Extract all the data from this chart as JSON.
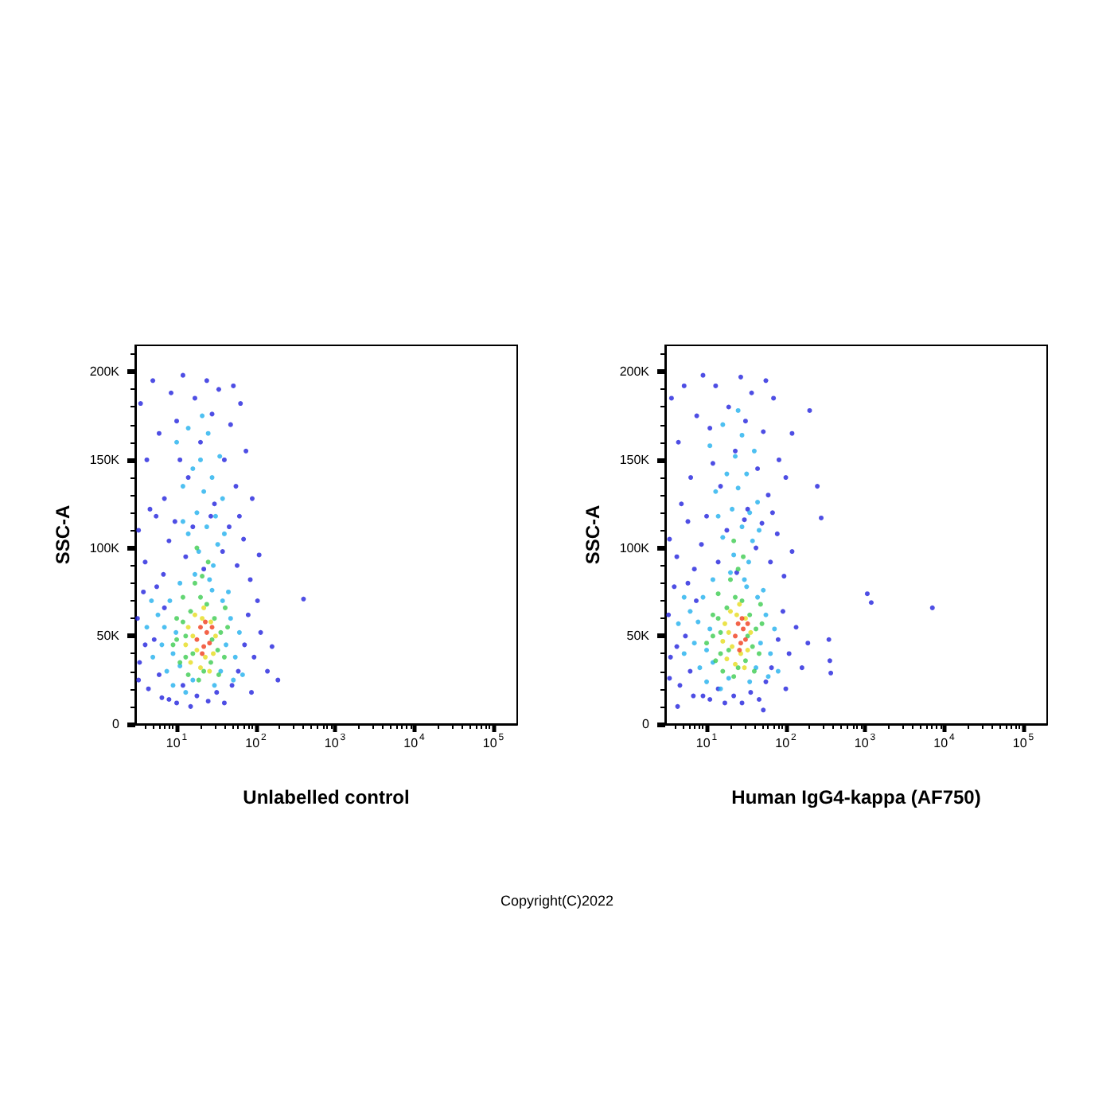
{
  "chart_data": [
    {
      "type": "scatter",
      "xlabel": "Unlabelled control",
      "ylabel": "SSC-A",
      "log": "x",
      "marker": "circle",
      "xlim": [
        3,
        200000
      ],
      "ylim": [
        0,
        215000
      ],
      "xticks": [
        {
          "value": 4,
          "label": null
        },
        {
          "value": 5,
          "label": null
        },
        {
          "value": 6,
          "label": null
        },
        {
          "value": 7,
          "label": null
        },
        {
          "value": 8,
          "label": null
        },
        {
          "value": 9,
          "label": null
        },
        {
          "value": 10,
          "label": "10$^{1}$"
        },
        {
          "value": 20,
          "label": null
        },
        {
          "value": 30,
          "label": null
        },
        {
          "value": 40,
          "label": null
        },
        {
          "value": 50,
          "label": null
        },
        {
          "value": 60,
          "label": null
        },
        {
          "value": 70,
          "label": null
        },
        {
          "value": 80,
          "label": null
        },
        {
          "value": 90,
          "label": null
        },
        {
          "value": 100,
          "label": "10$^{2}$"
        },
        {
          "value": 200,
          "label": null
        },
        {
          "value": 300,
          "label": null
        },
        {
          "value": 400,
          "label": null
        },
        {
          "value": 500,
          "label": null
        },
        {
          "value": 600,
          "label": null
        },
        {
          "value": 700,
          "label": null
        },
        {
          "value": 800,
          "label": null
        },
        {
          "value": 900,
          "label": null
        },
        {
          "value": 1000,
          "label": "10$^{3}$"
        },
        {
          "value": 2000,
          "label": null
        },
        {
          "value": 3000,
          "label": null
        },
        {
          "value": 4000,
          "label": null
        },
        {
          "value": 5000,
          "label": null
        },
        {
          "value": 6000,
          "label": null
        },
        {
          "value": 7000,
          "label": null
        },
        {
          "value": 8000,
          "label": null
        },
        {
          "value": 9000,
          "label": null
        },
        {
          "value": 10000,
          "label": "10$^{4}$"
        },
        {
          "value": 20000,
          "label": null
        },
        {
          "value": 30000,
          "label": null
        },
        {
          "value": 40000,
          "label": null
        },
        {
          "value": 50000,
          "label": null
        },
        {
          "value": 60000,
          "label": null
        },
        {
          "value": 70000,
          "label": null
        },
        {
          "value": 80000,
          "label": null
        },
        {
          "value": 90000,
          "label": null
        },
        {
          "value": 100000,
          "label": "10$^{5}$"
        }
      ],
      "yticks": [
        0,
        {
          "value": 10000,
          "label": null
        },
        {
          "value": 20000,
          "label": null
        },
        {
          "value": 30000,
          "label": null
        },
        {
          "value": 40000,
          "label": null
        },
        {
          "value": 50000,
          "label": "50K"
        },
        {
          "value": 60000,
          "label": null
        },
        {
          "value": 70000,
          "label": null
        },
        {
          "value": 80000,
          "label": null
        },
        {
          "value": 90000,
          "label": null
        },
        {
          "value": 100000,
          "label": "100K"
        },
        {
          "value": 110000,
          "label": null
        },
        {
          "value": 120000,
          "label": null
        },
        {
          "value": 130000,
          "label": null
        },
        {
          "value": 140000,
          "label": null
        },
        {
          "value": 150000,
          "label": "150K"
        },
        {
          "value": 160000,
          "label": null
        },
        {
          "value": 170000,
          "label": null
        },
        {
          "value": 180000,
          "label": null
        },
        {
          "value": 190000,
          "label": null
        },
        {
          "value": 200000,
          "label": "200K"
        },
        {
          "value": 210000,
          "label": null
        }
      ],
      "series": [
        {
          "color": "#2222dd",
          "x": [
            3.5,
            4.2,
            5,
            6,
            7,
            8.5,
            10,
            12,
            14,
            17,
            20,
            24,
            28,
            34,
            40,
            48,
            56,
            64,
            75,
            90,
            4.6,
            11,
            30,
            52,
            3.3,
            4,
            5.5,
            6.8,
            8,
            9.5,
            13,
            16,
            22,
            27,
            38,
            46,
            58,
            70,
            85,
            110,
            62,
            3.2,
            3.4,
            3.8,
            4.4,
            5.2,
            6,
            7,
            8,
            10,
            12,
            15,
            18,
            25,
            32,
            40,
            50,
            60,
            72,
            80,
            95,
            115,
            140,
            160,
            190,
            105,
            88,
            4,
            3.3,
            5.6,
            6.5,
            400
          ],
          "values": [
            182000,
            150000,
            195000,
            165000,
            128000,
            188000,
            172000,
            198000,
            140000,
            185000,
            160000,
            195000,
            176000,
            190000,
            150000,
            170000,
            135000,
            182000,
            155000,
            128000,
            122000,
            150000,
            125000,
            192000,
            110000,
            92000,
            118000,
            85000,
            104000,
            115000,
            95000,
            112000,
            88000,
            118000,
            98000,
            112000,
            90000,
            105000,
            82000,
            96000,
            118000,
            60000,
            35000,
            75000,
            20000,
            48000,
            28000,
            66000,
            14000,
            12000,
            22000,
            10000,
            16000,
            13000,
            18000,
            12000,
            22000,
            30000,
            45000,
            62000,
            38000,
            52000,
            30000,
            44000,
            25000,
            70000,
            18000,
            45000,
            25000,
            78000,
            15000,
            71000
          ]
        },
        {
          "color": "#22b0ee",
          "x": [
            10,
            12,
            14,
            16,
            18,
            20,
            22,
            25,
            28,
            31,
            35,
            38,
            14,
            19,
            24,
            29,
            33,
            17,
            26,
            21,
            12,
            40,
            4.2,
            5,
            5.8,
            6.5,
            7.5,
            8.2,
            9,
            9.8,
            11,
            13,
            16,
            30,
            36,
            42,
            48,
            55,
            62,
            45,
            38,
            7,
            11,
            68,
            9,
            28,
            4.8,
            52
          ],
          "values": [
            160000,
            135000,
            168000,
            145000,
            120000,
            150000,
            132000,
            165000,
            140000,
            118000,
            152000,
            128000,
            108000,
            98000,
            112000,
            90000,
            102000,
            85000,
            82000,
            175000,
            115000,
            108000,
            55000,
            38000,
            62000,
            45000,
            30000,
            70000,
            22000,
            52000,
            80000,
            18000,
            25000,
            22000,
            30000,
            45000,
            60000,
            38000,
            52000,
            75000,
            70000,
            55000,
            33000,
            28000,
            40000,
            76000,
            70000,
            25000
          ]
        },
        {
          "color": "#3ccc50",
          "x": [
            9,
            10,
            11,
            12,
            13,
            14,
            15,
            16,
            17,
            19,
            20,
            22,
            24,
            27,
            30,
            33,
            36,
            40,
            44,
            13,
            12,
            34,
            21,
            25,
            18,
            10,
            28,
            41
          ],
          "values": [
            45000,
            60000,
            35000,
            72000,
            50000,
            28000,
            64000,
            40000,
            80000,
            25000,
            72000,
            30000,
            68000,
            35000,
            60000,
            42000,
            52000,
            38000,
            55000,
            38000,
            58000,
            28000,
            84000,
            92000,
            100000,
            48000,
            48000,
            66000
          ]
        },
        {
          "color": "#e6dc1e",
          "x": [
            13,
            14,
            15,
            17,
            18,
            20,
            21,
            23,
            27,
            29,
            31,
            16,
            26,
            22
          ],
          "values": [
            45000,
            55000,
            35000,
            62000,
            42000,
            32000,
            60000,
            38000,
            58000,
            40000,
            50000,
            50000,
            30000,
            66000
          ]
        },
        {
          "color": "#f03c1c",
          "x": [
            18,
            20,
            22,
            24,
            26,
            28,
            23,
            21
          ],
          "values": [
            48000,
            55000,
            44000,
            52000,
            46000,
            55000,
            58000,
            40000
          ]
        }
      ]
    },
    {
      "type": "scatter",
      "xlabel": "Human IgG4-kappa (AF750)",
      "ylabel": "SSC-A",
      "log": "x",
      "marker": "circle",
      "xlim": [
        3,
        200000
      ],
      "ylim": [
        0,
        215000
      ],
      "xticks": [
        {
          "value": 4,
          "label": null
        },
        {
          "value": 5,
          "label": null
        },
        {
          "value": 6,
          "label": null
        },
        {
          "value": 7,
          "label": null
        },
        {
          "value": 8,
          "label": null
        },
        {
          "value": 9,
          "label": null
        },
        {
          "value": 10,
          "label": "10$^{1}$"
        },
        {
          "value": 20,
          "label": null
        },
        {
          "value": 30,
          "label": null
        },
        {
          "value": 40,
          "label": null
        },
        {
          "value": 50,
          "label": null
        },
        {
          "value": 60,
          "label": null
        },
        {
          "value": 70,
          "label": null
        },
        {
          "value": 80,
          "label": null
        },
        {
          "value": 90,
          "label": null
        },
        {
          "value": 100,
          "label": "10$^{2}$"
        },
        {
          "value": 200,
          "label": null
        },
        {
          "value": 300,
          "label": null
        },
        {
          "value": 400,
          "label": null
        },
        {
          "value": 500,
          "label": null
        },
        {
          "value": 600,
          "label": null
        },
        {
          "value": 700,
          "label": null
        },
        {
          "value": 800,
          "label": null
        },
        {
          "value": 900,
          "label": null
        },
        {
          "value": 1000,
          "label": "10$^{3}$"
        },
        {
          "value": 2000,
          "label": null
        },
        {
          "value": 3000,
          "label": null
        },
        {
          "value": 4000,
          "label": null
        },
        {
          "value": 5000,
          "label": null
        },
        {
          "value": 6000,
          "label": null
        },
        {
          "value": 7000,
          "label": null
        },
        {
          "value": 8000,
          "label": null
        },
        {
          "value": 9000,
          "label": null
        },
        {
          "value": 10000,
          "label": "10$^{4}$"
        },
        {
          "value": 20000,
          "label": null
        },
        {
          "value": 30000,
          "label": null
        },
        {
          "value": 40000,
          "label": null
        },
        {
          "value": 50000,
          "label": null
        },
        {
          "value": 60000,
          "label": null
        },
        {
          "value": 70000,
          "label": null
        },
        {
          "value": 80000,
          "label": null
        },
        {
          "value": 90000,
          "label": null
        },
        {
          "value": 100000,
          "label": "10$^{5}$"
        }
      ],
      "yticks": [
        0,
        {
          "value": 10000,
          "label": null
        },
        {
          "value": 20000,
          "label": null
        },
        {
          "value": 30000,
          "label": null
        },
        {
          "value": 40000,
          "label": null
        },
        {
          "value": 50000,
          "label": "50K"
        },
        {
          "value": 60000,
          "label": null
        },
        {
          "value": 70000,
          "label": null
        },
        {
          "value": 80000,
          "label": null
        },
        {
          "value": 90000,
          "label": null
        },
        {
          "value": 100000,
          "label": "100K"
        },
        {
          "value": 110000,
          "label": null
        },
        {
          "value": 120000,
          "label": null
        },
        {
          "value": 130000,
          "label": null
        },
        {
          "value": 140000,
          "label": null
        },
        {
          "value": 150000,
          "label": "150K"
        },
        {
          "value": 160000,
          "label": null
        },
        {
          "value": 170000,
          "label": null
        },
        {
          "value": 180000,
          "label": null
        },
        {
          "value": 190000,
          "label": null
        },
        {
          "value": 200000,
          "label": "200K"
        },
        {
          "value": 210000,
          "label": null
        }
      ],
      "annotations": [
        "Copyright(C)2022"
      ],
      "series": [
        {
          "color": "#2222dd",
          "x": [
            3.6,
            4.4,
            5.2,
            6.3,
            7.5,
            9,
            11,
            13,
            15,
            19,
            23,
            27,
            31,
            37,
            44,
            52,
            60,
            70,
            82,
            100,
            120,
            4.8,
            12,
            33,
            56,
            200,
            3.4,
            4.2,
            5.8,
            7,
            8.6,
            10,
            14,
            18,
            24,
            30,
            42,
            50,
            64,
            78,
            95,
            120,
            68,
            280,
            250,
            3.3,
            3.5,
            3.9,
            4.6,
            5.4,
            6.2,
            7.4,
            9,
            11,
            14,
            17,
            22,
            28,
            36,
            46,
            56,
            66,
            80,
            92,
            110,
            135,
            160,
            190,
            350,
            360,
            370,
            4.2,
            3.4,
            5.8,
            6.8,
            4.3,
            52,
            1070,
            1200,
            7100,
            100
          ],
          "values": [
            185000,
            160000,
            192000,
            140000,
            175000,
            198000,
            168000,
            192000,
            135000,
            180000,
            155000,
            197000,
            172000,
            188000,
            145000,
            166000,
            130000,
            185000,
            150000,
            140000,
            165000,
            125000,
            148000,
            122000,
            195000,
            178000,
            105000,
            95000,
            115000,
            88000,
            102000,
            118000,
            92000,
            110000,
            86000,
            116000,
            100000,
            114000,
            92000,
            108000,
            84000,
            98000,
            120000,
            117000,
            135000,
            62000,
            38000,
            78000,
            22000,
            50000,
            30000,
            70000,
            16000,
            14000,
            20000,
            12000,
            16000,
            12000,
            18000,
            14000,
            24000,
            32000,
            48000,
            64000,
            40000,
            55000,
            32000,
            46000,
            48000,
            36000,
            29000,
            44000,
            26000,
            80000,
            16000,
            10000,
            8000,
            74000,
            69000,
            66000,
            20000
          ]
        },
        {
          "color": "#22b0ee",
          "x": [
            11,
            13,
            16,
            18,
            21,
            23,
            25,
            28,
            32,
            35,
            40,
            44,
            16,
            22,
            28,
            34,
            38,
            20,
            30,
            25,
            14,
            46,
            4.4,
            5.2,
            6.2,
            7,
            8.2,
            9,
            10,
            11,
            12,
            15,
            19,
            35,
            42,
            48,
            56,
            64,
            72,
            52,
            44,
            7.8,
            12,
            80,
            10,
            32,
            5.2,
            60
          ],
          "values": [
            158000,
            132000,
            170000,
            142000,
            122000,
            152000,
            134000,
            164000,
            142000,
            120000,
            155000,
            126000,
            106000,
            96000,
            112000,
            92000,
            104000,
            86000,
            82000,
            178000,
            118000,
            110000,
            57000,
            40000,
            64000,
            46000,
            32000,
            72000,
            24000,
            54000,
            82000,
            20000,
            26000,
            24000,
            32000,
            46000,
            62000,
            40000,
            54000,
            76000,
            72000,
            58000,
            35000,
            30000,
            42000,
            78000,
            72000,
            27000
          ]
        },
        {
          "color": "#3ccc50",
          "x": [
            10,
            12,
            13,
            14,
            15,
            16,
            18,
            19,
            20,
            22,
            23,
            25,
            28,
            31,
            35,
            38,
            42,
            46,
            50,
            15,
            14,
            40,
            25,
            29,
            22,
            12,
            33,
            48
          ],
          "values": [
            46000,
            62000,
            36000,
            74000,
            52000,
            30000,
            66000,
            42000,
            82000,
            27000,
            72000,
            32000,
            70000,
            36000,
            62000,
            44000,
            54000,
            40000,
            57000,
            40000,
            60000,
            30000,
            88000,
            95000,
            104000,
            50000,
            50000,
            68000
          ]
        },
        {
          "color": "#e6dc1e",
          "x": [
            16,
            17,
            18,
            20,
            21,
            23,
            24,
            27,
            31,
            33,
            36,
            19,
            30,
            26
          ],
          "values": [
            47000,
            57000,
            37000,
            64000,
            44000,
            34000,
            62000,
            40000,
            60000,
            42000,
            52000,
            52000,
            32000,
            68000
          ]
        },
        {
          "color": "#f03c1c",
          "x": [
            23,
            25,
            27,
            29,
            31,
            33,
            28,
            26
          ],
          "values": [
            50000,
            57000,
            46000,
            54000,
            48000,
            57000,
            60000,
            42000
          ]
        }
      ]
    }
  ]
}
